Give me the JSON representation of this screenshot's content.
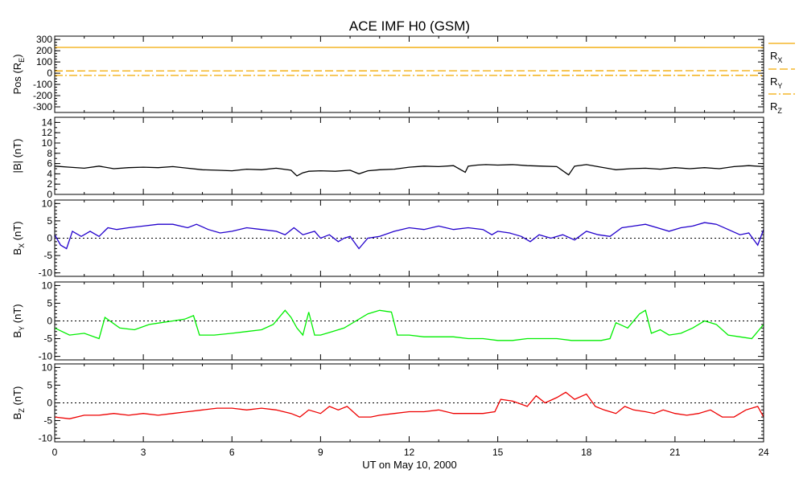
{
  "chart_data": {
    "title": "ACE IMF H0 (GSM)",
    "xlabel": "UT on May 10, 2000",
    "x_ticks": [
      "0",
      "3",
      "6",
      "9",
      "12",
      "15",
      "18",
      "21",
      "24"
    ],
    "xlim": [
      0,
      24
    ],
    "panels": [
      {
        "id": "pos",
        "type": "line",
        "ylabel": "Pos (R",
        "ylabel_sub": "E",
        "ylabel_tail": ")",
        "ylim": [
          -350,
          330
        ],
        "y_ticks": [
          300,
          200,
          100,
          0,
          -100,
          -200,
          -300
        ],
        "zero_line": false,
        "series": [
          {
            "name": "R",
            "sub": "X",
            "color": "#f2a900",
            "dash": "",
            "x": [
              0,
              24
            ],
            "values": [
              230,
              229
            ]
          },
          {
            "name": "R",
            "sub": "Y",
            "color": "#f2a900",
            "dash": "10,4",
            "x": [
              0,
              24
            ],
            "values": [
              20,
              22
            ]
          },
          {
            "name": "R",
            "sub": "Z",
            "color": "#f2a900",
            "dash": "10,3,2,3",
            "x": [
              0,
              24
            ],
            "values": [
              -20,
              -19
            ]
          }
        ]
      },
      {
        "id": "bmag",
        "type": "line",
        "ylabel": "|B| (nT)",
        "ylim": [
          0,
          15
        ],
        "y_ticks": [
          14,
          12,
          10,
          8,
          6,
          4,
          2,
          0
        ],
        "zero_line": false,
        "series": [
          {
            "color": "#000000",
            "x": [
              0,
              0.5,
              1,
              1.5,
              2,
              2.5,
              3,
              3.5,
              4,
              4.5,
              5,
              5.5,
              6,
              6.5,
              7,
              7.5,
              8,
              8.2,
              8.4,
              8.6,
              9,
              9.5,
              10,
              10.3,
              10.6,
              11,
              11.5,
              12,
              12.5,
              13,
              13.5,
              13.9,
              14,
              14.3,
              14.6,
              15,
              15.5,
              16,
              16.5,
              17,
              17.4,
              17.6,
              18,
              18.5,
              19,
              19.5,
              20,
              20.5,
              21,
              21.5,
              22,
              22.5,
              23,
              23.5,
              24
            ],
            "values": [
              5.5,
              5.3,
              5.1,
              5.5,
              5.0,
              5.2,
              5.3,
              5.2,
              5.4,
              5.1,
              4.8,
              4.7,
              4.6,
              4.9,
              4.8,
              5.1,
              4.7,
              3.6,
              4.2,
              4.5,
              4.6,
              4.5,
              4.7,
              4.0,
              4.6,
              4.8,
              4.9,
              5.3,
              5.5,
              5.4,
              5.6,
              4.3,
              5.5,
              5.7,
              5.8,
              5.7,
              5.8,
              5.6,
              5.5,
              5.4,
              3.8,
              5.5,
              5.8,
              5.3,
              4.8,
              5.0,
              5.1,
              4.9,
              5.2,
              5.0,
              5.2,
              5.0,
              5.4,
              5.6,
              5.4
            ]
          }
        ]
      },
      {
        "id": "bx",
        "type": "line",
        "ylabel": "B",
        "ylabel_sub": "X",
        "ylabel_tail": " (nT)",
        "ylim": [
          -11,
          11
        ],
        "y_ticks": [
          10,
          5,
          0,
          -5,
          -10
        ],
        "zero_line": true,
        "series": [
          {
            "color": "#2200cc",
            "x": [
              0,
              0.2,
              0.4,
              0.6,
              0.9,
              1.2,
              1.5,
              1.8,
              2.1,
              2.5,
              3,
              3.5,
              4,
              4.5,
              4.8,
              5.2,
              5.6,
              6,
              6.5,
              7,
              7.5,
              7.8,
              8.1,
              8.4,
              8.8,
              9,
              9.3,
              9.6,
              9.8,
              10,
              10.3,
              10.6,
              11,
              11.5,
              12,
              12.5,
              13,
              13.5,
              14,
              14.5,
              14.8,
              15,
              15.4,
              15.8,
              16.1,
              16.4,
              16.8,
              17.2,
              17.6,
              18,
              18.4,
              18.8,
              19.2,
              19.6,
              20,
              20.4,
              20.8,
              21.2,
              21.6,
              22,
              22.4,
              22.8,
              23.2,
              23.5,
              23.8,
              24
            ],
            "values": [
              1,
              -2,
              -3,
              2,
              0.5,
              2,
              0.5,
              3,
              2.5,
              3,
              3.5,
              4,
              4,
              3,
              4,
              2.5,
              1.5,
              2,
              3,
              2.5,
              2,
              1,
              3,
              1,
              2,
              0,
              1,
              -1,
              0,
              0.5,
              -3,
              0,
              0.5,
              2,
              3,
              2.5,
              3.5,
              2.5,
              3,
              2.5,
              1,
              2,
              1.5,
              0.5,
              -1,
              1,
              0,
              1,
              -0.5,
              2,
              1,
              0.5,
              3,
              3.5,
              4,
              3,
              2,
              3,
              3.5,
              4.5,
              4,
              2.5,
              1,
              1.5,
              -2,
              2.5
            ]
          }
        ]
      },
      {
        "id": "by",
        "type": "line",
        "ylabel": "B",
        "ylabel_sub": "Y",
        "ylabel_tail": " (nT)",
        "ylim": [
          -11,
          11
        ],
        "y_ticks": [
          10,
          5,
          0,
          -5,
          -10
        ],
        "zero_line": true,
        "series": [
          {
            "color": "#00ee00",
            "x": [
              0,
              0.5,
              1,
              1.5,
              1.7,
              2.2,
              2.7,
              3.2,
              3.6,
              4,
              4.4,
              4.7,
              4.9,
              5.4,
              6,
              6.5,
              7,
              7.4,
              7.8,
              8,
              8.2,
              8.4,
              8.6,
              8.8,
              9,
              9.4,
              9.8,
              10.2,
              10.6,
              11,
              11.4,
              11.6,
              12,
              12.5,
              13,
              13.5,
              14,
              14.5,
              15,
              15.5,
              16,
              16.5,
              17,
              17.5,
              18,
              18.5,
              18.8,
              19,
              19.4,
              19.8,
              20,
              20.2,
              20.5,
              20.8,
              21.2,
              21.6,
              22,
              22.4,
              22.8,
              23.2,
              23.6,
              24
            ],
            "values": [
              -2,
              -4,
              -3.5,
              -5,
              1,
              -2,
              -2.5,
              -1,
              -0.5,
              0,
              0.5,
              1.5,
              -4,
              -4,
              -3.5,
              -3,
              -2.5,
              -1,
              3,
              1,
              -2,
              -4,
              2.5,
              -4,
              -4,
              -3,
              -2,
              0,
              2,
              3,
              2.5,
              -4,
              -4,
              -4.5,
              -4.5,
              -4.5,
              -5,
              -5,
              -5.5,
              -5.5,
              -5,
              -5,
              -5,
              -5.5,
              -5.5,
              -5.5,
              -5,
              -0.5,
              -2,
              2,
              3,
              -3.5,
              -2.5,
              -4,
              -3.5,
              -2,
              0,
              -1,
              -4,
              -4.5,
              -5,
              -1
            ]
          }
        ]
      },
      {
        "id": "bz",
        "type": "line",
        "ylabel": "B",
        "ylabel_sub": "Z",
        "ylabel_tail": " (nT)",
        "ylim": [
          -11,
          11
        ],
        "y_ticks": [
          10,
          5,
          0,
          -5,
          -10
        ],
        "zero_line": true,
        "series": [
          {
            "color": "#ee0000",
            "x": [
              0,
              0.5,
              1,
              1.5,
              2,
              2.5,
              3,
              3.5,
              4,
              4.5,
              5,
              5.5,
              6,
              6.5,
              7,
              7.5,
              8,
              8.3,
              8.6,
              9,
              9.3,
              9.6,
              9.9,
              10.3,
              10.7,
              11,
              11.5,
              12,
              12.5,
              13,
              13.5,
              14,
              14.5,
              14.9,
              15.1,
              15.5,
              16,
              16.3,
              16.6,
              17,
              17.3,
              17.6,
              18,
              18.3,
              18.6,
              19,
              19.3,
              19.6,
              20,
              20.3,
              20.6,
              21,
              21.4,
              21.8,
              22.2,
              22.6,
              23,
              23.4,
              23.8,
              24
            ],
            "values": [
              -4,
              -4.5,
              -3.5,
              -3.5,
              -3,
              -3.5,
              -3,
              -3.5,
              -3,
              -2.5,
              -2,
              -1.5,
              -1.5,
              -2,
              -1.5,
              -2,
              -3,
              -4,
              -2,
              -3,
              -1,
              -2,
              -1,
              -4,
              -4,
              -3.5,
              -3,
              -2.5,
              -2.5,
              -2,
              -3,
              -3,
              -3,
              -2.5,
              1,
              0.5,
              -1,
              2,
              0,
              1.5,
              3,
              1,
              2.5,
              -1,
              -2,
              -3,
              -1,
              -2,
              -2.5,
              -3,
              -2,
              -3,
              -3.5,
              -3,
              -2,
              -4,
              -4,
              -2,
              -1,
              -4
            ]
          }
        ]
      }
    ]
  }
}
